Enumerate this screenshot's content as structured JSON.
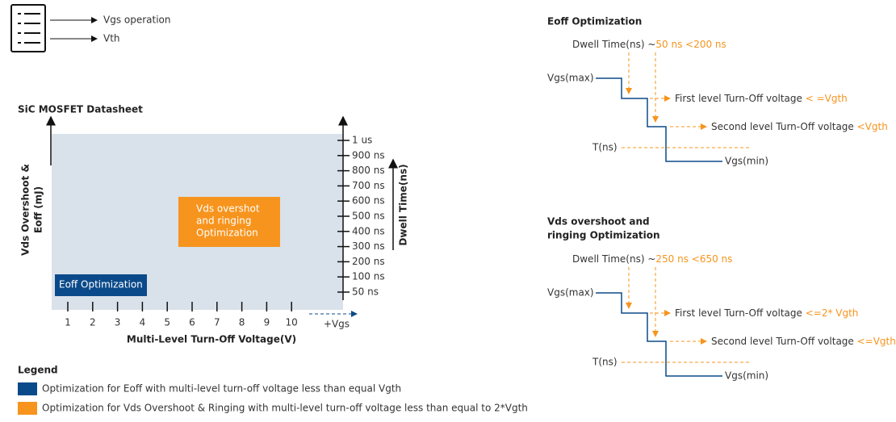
{
  "menu_legend": {
    "items": [
      "Vgs operation",
      "Vth"
    ]
  },
  "main_chart": {
    "title": "SiC MOSFET Datasheet",
    "y_axis_label": [
      "Vds Overshoot &",
      "Eoff (mJ)"
    ],
    "x_axis_label": "Multi-Level Turn-Off Voltage(V)",
    "x_ticks": [
      "1",
      "2",
      "3",
      "4",
      "5",
      "6",
      "7",
      "8",
      "9",
      "10"
    ],
    "x_arrow_label": "+Vgs",
    "right_ticks": [
      "1 us",
      "900 ns",
      "800 ns",
      "700 ns",
      "600 ns",
      "500 ns",
      "400 ns",
      "300 ns",
      "200 ns",
      "100 ns",
      "50 ns"
    ],
    "right_axis_label": "Dwell Time(ns)",
    "vds_region": [
      "Vds overshot",
      "and ringing",
      "Optimization"
    ],
    "eoff_region": "Eoff Optimization"
  },
  "legend": {
    "title": "Legend",
    "items": [
      "Optimization for Eoff with multi-level turn-off voltage less than equal Vgth",
      "Optimization for Vds Overshoot & Ringing with multi-level turn-off voltage less than equal to 2*Vgth"
    ]
  },
  "diagrams": [
    {
      "heading": [
        "Eoff Optimization"
      ],
      "dwell_label": "Dwell Time(ns) ~",
      "dwell_range": "50 ns <200 ns",
      "vgs_max": "Vgs(max)",
      "first_level": "First level Turn-Off voltage ",
      "first_limit": "< =Vgth",
      "second_level": "Second level Turn-Off voltage ",
      "second_limit": "<Vgth",
      "t_label": "T(ns)",
      "vgs_min": "Vgs(min)"
    },
    {
      "heading": [
        "Vds overshoot and",
        "ringing Optimization"
      ],
      "dwell_label": "Dwell Time(ns) ~",
      "dwell_range": "250 ns <650 ns",
      "vgs_max": "Vgs(max)",
      "first_level": "First level Turn-Off voltage ",
      "first_limit": "<=2* Vgth",
      "second_level": "Second level Turn-Off voltage ",
      "second_limit": "<=Vgth",
      "t_label": "T(ns)",
      "vgs_min": "Vgs(min)"
    }
  ]
}
